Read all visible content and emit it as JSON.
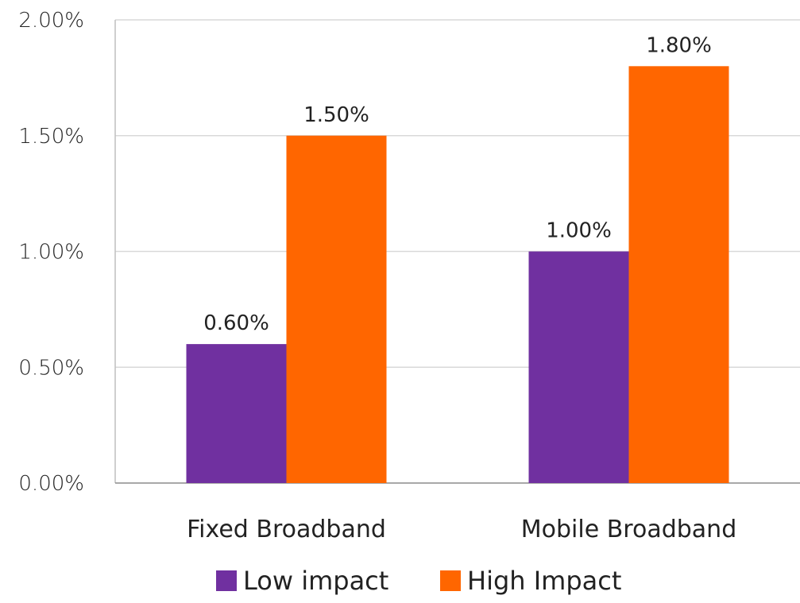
{
  "chart_data": {
    "type": "bar",
    "categories": [
      "Fixed Broadband",
      "Mobile Broadband"
    ],
    "series": [
      {
        "name": "Low impact",
        "values": [
          0.6,
          1.0
        ],
        "labels": [
          "0.60%",
          "1.00%"
        ],
        "color": "#7030A0"
      },
      {
        "name": "High Impact",
        "values": [
          1.5,
          1.8
        ],
        "labels": [
          "1.50%",
          "1.80%"
        ],
        "color": "#FF6600"
      }
    ],
    "ylim": [
      0,
      2.0
    ],
    "y_ticks": [
      0.0,
      0.5,
      1.0,
      1.5,
      2.0
    ],
    "y_tick_labels": [
      "0.00%",
      "0.50%",
      "1.00%",
      "1.50%",
      "2.00%"
    ],
    "grid": true,
    "legend_position": "bottom",
    "title": "",
    "xlabel": "",
    "ylabel": ""
  }
}
